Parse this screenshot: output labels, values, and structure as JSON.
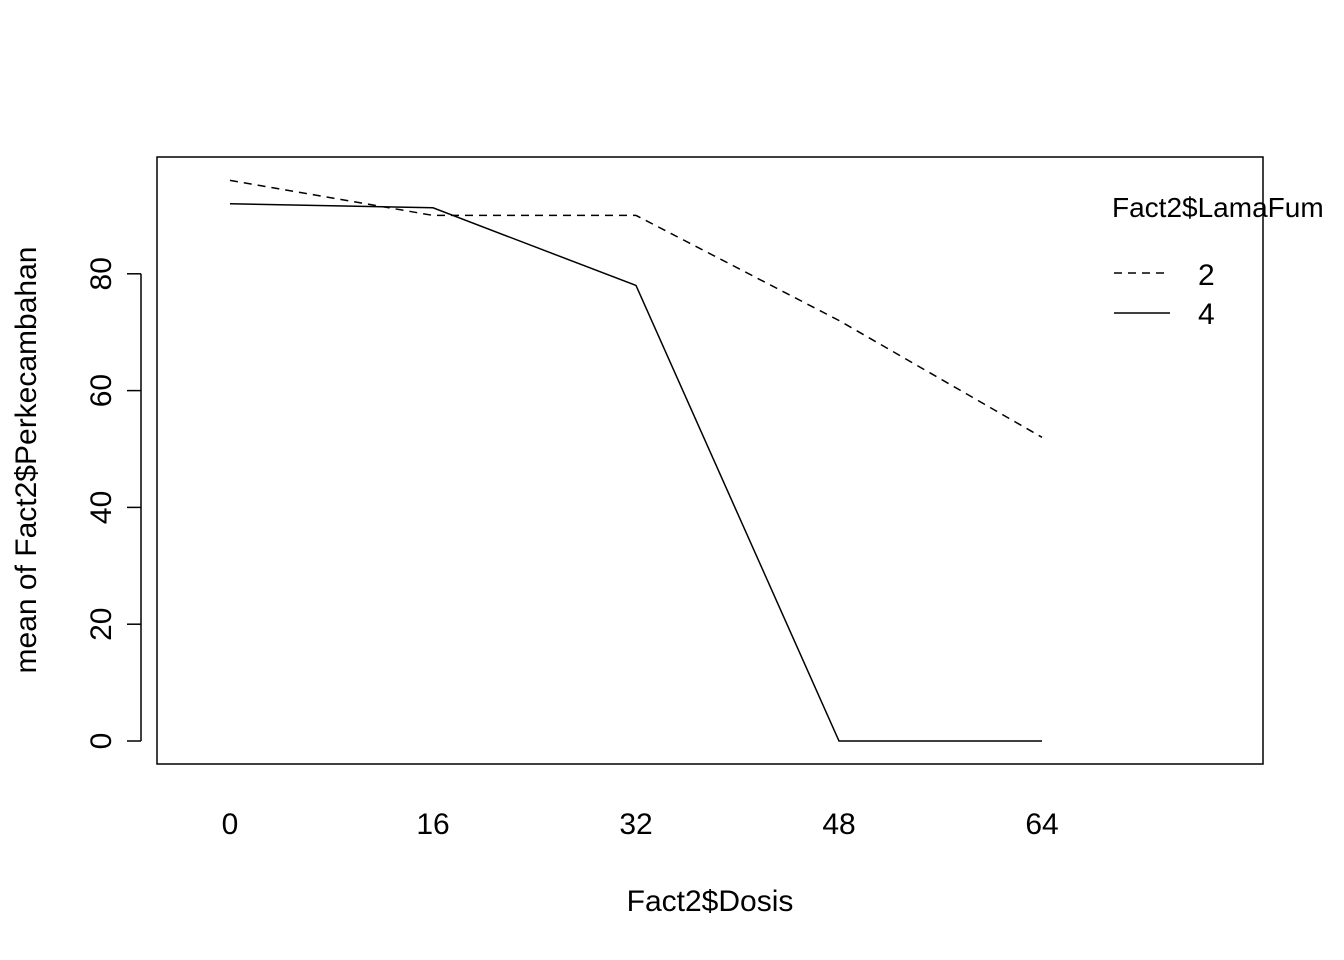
{
  "chart_data": {
    "type": "line",
    "title": "",
    "xlabel": "Fact2$Dosis",
    "ylabel": "mean of  Fact2$Perkecambahan",
    "categories": [
      "0",
      "16",
      "32",
      "48",
      "64"
    ],
    "yticks": [
      0,
      20,
      40,
      60,
      80
    ],
    "ylim": [
      0,
      96
    ],
    "grid": false,
    "legend": {
      "title": "Fact2$LamaFum",
      "position": "top-right"
    },
    "series": [
      {
        "name": "2",
        "line_style": "dashed",
        "values": [
          96,
          90,
          90,
          72,
          52
        ]
      },
      {
        "name": "4",
        "line_style": "solid",
        "values": [
          92,
          91.3,
          78,
          0,
          0
        ]
      }
    ]
  }
}
